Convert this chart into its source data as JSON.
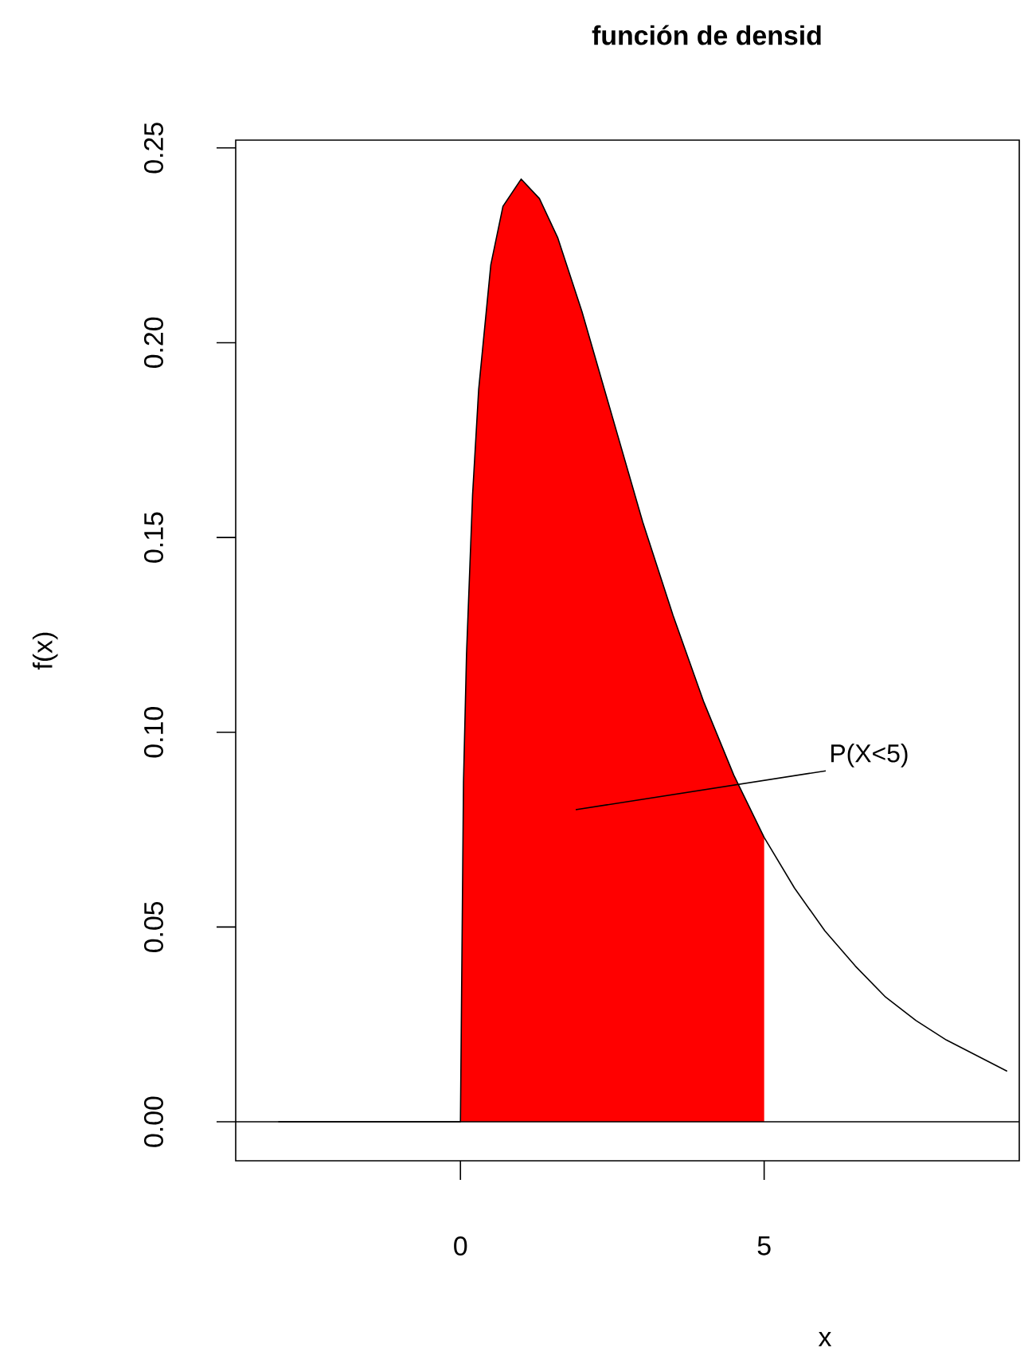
{
  "chart_data": {
    "type": "line",
    "title": "función de densid",
    "xlabel": "x",
    "ylabel": "f(x)",
    "xlim": [
      -3.7,
      9.2
    ],
    "ylim": [
      -0.01,
      0.252
    ],
    "xticks": [
      0,
      5
    ],
    "yticks": [
      {
        "value": 0,
        "label": "0.00"
      },
      {
        "value": 0.05,
        "label": "0.05"
      },
      {
        "value": 0.1,
        "label": "0.10"
      },
      {
        "value": 0.15,
        "label": "0.15"
      },
      {
        "value": 0.2,
        "label": "0.20"
      },
      {
        "value": 0.25,
        "label": "0.25"
      }
    ],
    "series": [
      {
        "type": "area",
        "color": "#ff0000",
        "x": [
          0,
          0.05,
          0.1,
          0.2,
          0.3,
          0.5,
          0.7,
          1,
          1.3,
          1.6,
          2,
          2.5,
          3,
          3.5,
          4,
          4.5,
          5
        ],
        "values": [
          0,
          0.087,
          0.12,
          0.161,
          0.188,
          0.22,
          0.235,
          0.242,
          0.237,
          0.227,
          0.208,
          0.181,
          0.154,
          0.13,
          0.108,
          0.089,
          0.073
        ]
      },
      {
        "color": "#000000",
        "x": [
          -3,
          -2,
          -1,
          0,
          0.05,
          0.1,
          0.2,
          0.3,
          0.5,
          0.7,
          1,
          1.3,
          1.6,
          2,
          2.5,
          3,
          3.5,
          4,
          4.5,
          5,
          5.5,
          6,
          6.5,
          7,
          7.5,
          8,
          8.5,
          9
        ],
        "values": [
          0,
          0,
          0,
          0,
          0.087,
          0.12,
          0.161,
          0.188,
          0.22,
          0.235,
          0.242,
          0.237,
          0.227,
          0.208,
          0.181,
          0.154,
          0.13,
          0.108,
          0.089,
          0.073,
          0.06,
          0.049,
          0.04,
          0.032,
          0.026,
          0.021,
          0.017,
          0.013
        ]
      }
    ],
    "ref_lines": [
      {
        "axis": "y",
        "value": 0,
        "color": "#000000"
      }
    ],
    "annotations": [
      "P(X<5)"
    ]
  }
}
